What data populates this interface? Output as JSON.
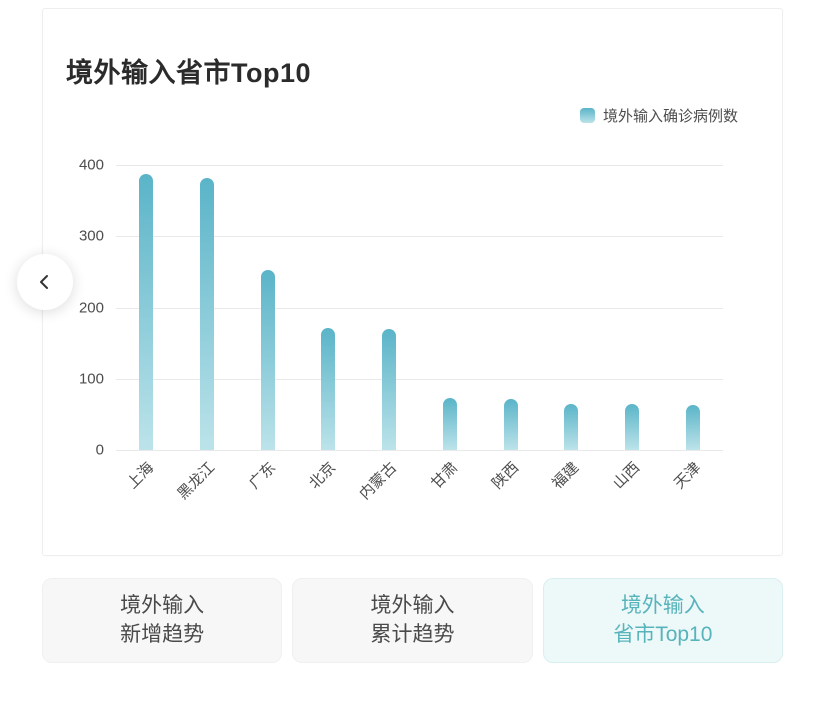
{
  "panel": {
    "title": "境外输入省市Top10"
  },
  "legend": {
    "label": "境外输入确诊病例数"
  },
  "tabs": [
    {
      "line1": "境外输入",
      "line2": "新增趋势",
      "active": false
    },
    {
      "line1": "境外输入",
      "line2": "累计趋势",
      "active": false
    },
    {
      "line1": "境外输入",
      "line2": "省市Top10",
      "active": true
    }
  ],
  "colors": {
    "bar_top": "#5ab4c8",
    "bar_bottom": "#bce3ea",
    "grid_line": "#e9e9e9",
    "axis_text": "#4d4d4d",
    "title_text": "#2b2b2b",
    "active_tab_text": "#57b4bb",
    "active_tab_bg": "#edf8f9",
    "active_tab_border": "#d9eff0",
    "inactive_tab_bg": "#f7f7f7",
    "inactive_tab_text": "#4a4a4a"
  },
  "chart_data": {
    "type": "bar",
    "title": "境外输入省市Top10",
    "series_name": "境外输入确诊病例数",
    "categories": [
      "上海",
      "黑龙江",
      "广东",
      "北京",
      "内蒙古",
      "甘肃",
      "陕西",
      "福建",
      "山西",
      "天津"
    ],
    "values": [
      387,
      382,
      252,
      171,
      170,
      73,
      72,
      64,
      64,
      63
    ],
    "ylim": [
      0,
      400
    ],
    "yticks": [
      0,
      100,
      200,
      300,
      400
    ],
    "grid": true,
    "legend_position": "top-right",
    "x_label_rotation": 45
  }
}
